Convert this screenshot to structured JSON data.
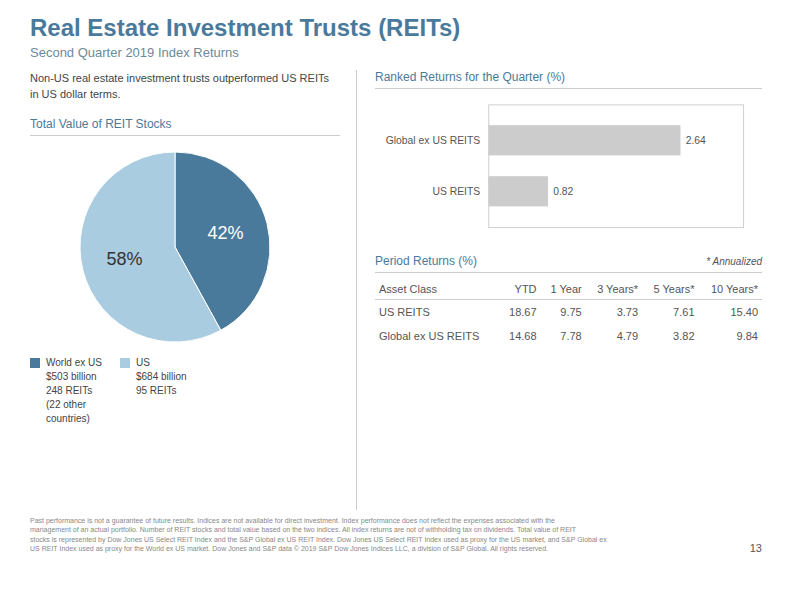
{
  "title": "Real Estate Investment Trusts (REITs)",
  "subtitle": "Second Quarter 2019 Index Returns",
  "annotations": [
    "Non-US real estate investment trusts outperformed US REITs\nin US dollar terms.",
    "Past performance is not a guarantee of future results. Indices are not available for direct investment. Index performance does not reflect the expenses associated with the\nmanagement of an actual portfolio. Number of REIT stocks and total value based on the two indices. All index returns are not of withholding tax on dividends. Total value of REIT\nstocks is represented by Dow Jones US Select REIT Index and the S&P Global ex US REIT Index. Dow Jones US Select REIT Index used as proxy for the US market, and S&P Global ex\nUS REIT Index used as proxy for the World ex US market. Dow Jones and S&P data © 2019 S&P Dow Jones Indices LLC, a division of S&P Global. All rights reserved.",
    "13"
  ],
  "chart_data": [
    {
      "type": "bar",
      "orientation": "horizontal",
      "title": "Ranked Returns for the Quarter (%)",
      "categories": [
        "Global ex US REITS",
        "US REITS"
      ],
      "values": [
        2.64,
        0.82
      ],
      "color": "#cccccc",
      "xlim": [
        0,
        3.5
      ],
      "xticks": [],
      "data_labels": true,
      "tick_labels": "y",
      "grid": false
    },
    {
      "type": "pie",
      "title": "Total Value of REIT Stocks",
      "categories": [
        "World ex US\n$503 billion\n248 REITs\n(22 other\ncountries)",
        "US\n$684 billion\n95 REITs"
      ],
      "values": [
        42,
        58
      ],
      "value_labels": [
        "42%",
        "58%"
      ],
      "colors": [
        "#4a7a9b",
        "#aacce0"
      ],
      "data_labels": true
    },
    {
      "type": "table",
      "title": "Period Returns (%)",
      "annotations": [
        "* Annualized"
      ],
      "headers": [
        "Asset Class",
        "YTD",
        "1 Year",
        "3 Years*",
        "5 Years*",
        "10 Years*"
      ],
      "rows": [
        [
          "US REITS",
          "18.67",
          "9.75",
          "3.73",
          "7.61",
          "15.40"
        ],
        [
          "Global ex US REITS",
          "14.68",
          "7.78",
          "4.79",
          "3.82",
          "9.84"
        ]
      ]
    }
  ]
}
